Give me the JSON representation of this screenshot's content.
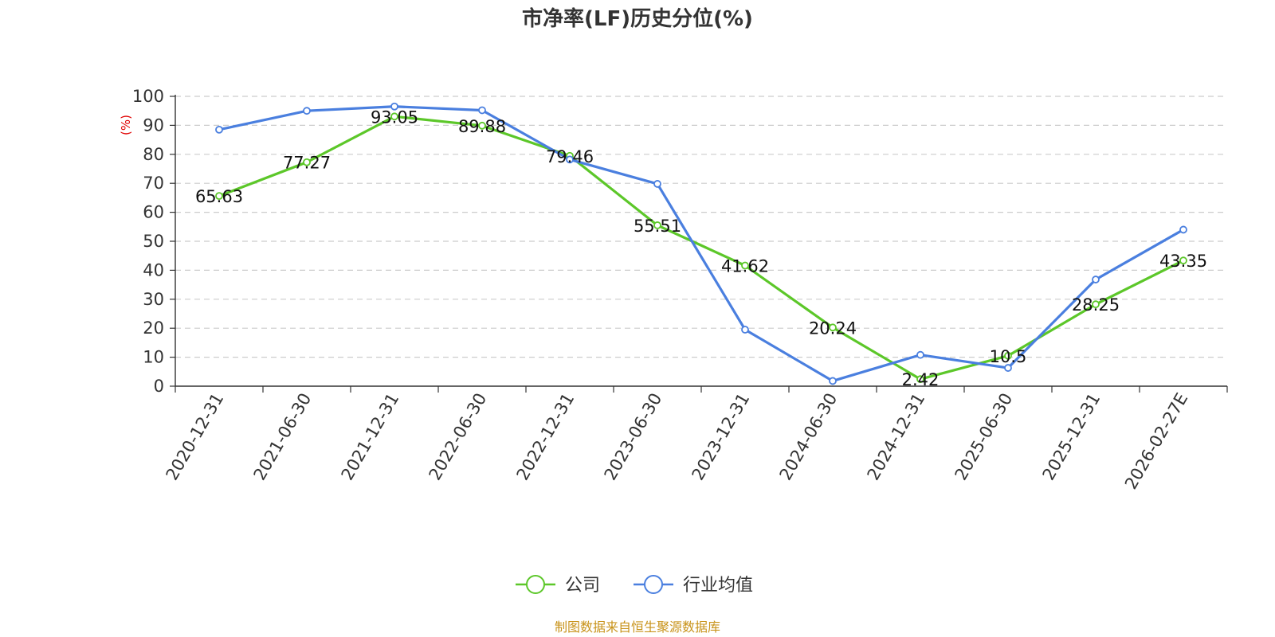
{
  "chart_data": {
    "type": "line",
    "title": "市净率(LF)历史分位(%)",
    "ylabel": "(%)",
    "ylim": [
      0,
      100
    ],
    "yticks": [
      0,
      10,
      20,
      30,
      40,
      50,
      60,
      70,
      80,
      90,
      100
    ],
    "categories": [
      "2020-12-31",
      "2021-06-30",
      "2021-12-31",
      "2022-06-30",
      "2022-12-31",
      "2023-06-30",
      "2023-12-31",
      "2024-06-30",
      "2024-12-31",
      "2025-06-30",
      "2025-12-31",
      "2026-02-27E"
    ],
    "grid": true,
    "legend_position": "bottom",
    "series": [
      {
        "name": "公司",
        "color": "#5cc729",
        "values": [
          65.63,
          77.27,
          93.05,
          89.88,
          79.46,
          55.51,
          41.62,
          20.24,
          2.42,
          10.5,
          28.25,
          43.35
        ],
        "labels": [
          "65.63",
          "77.27",
          "93.05",
          "89.88",
          "79.46",
          "55.51",
          "41.62",
          "20.24",
          "2.42",
          "10.5",
          "28.25",
          "43.35"
        ]
      },
      {
        "name": "行业均值",
        "color": "#4a7fdf",
        "values": [
          88.5,
          95,
          96.5,
          95.2,
          78.2,
          69.8,
          19.5,
          1.8,
          10.8,
          6.3,
          36.8,
          54.0
        ]
      }
    ]
  },
  "footer": {
    "source": "制图数据来自恒生聚源数据库"
  }
}
